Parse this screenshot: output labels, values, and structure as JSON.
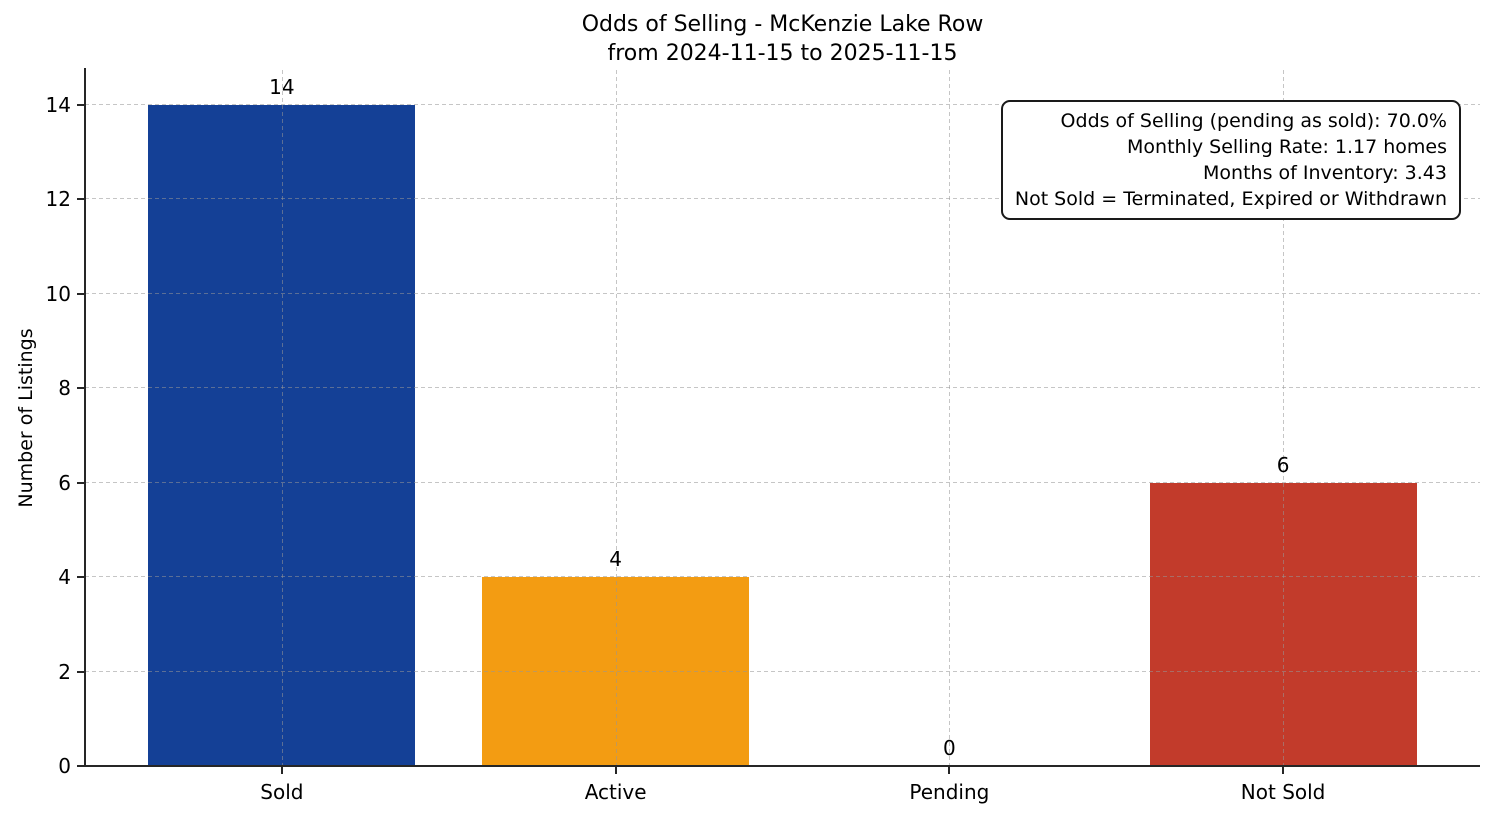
{
  "figure": {
    "background": "#ffffff"
  },
  "header": {
    "title_line1": "Odds of Selling - McKenzie Lake Row",
    "title_line2": "from 2024-11-15 to 2025-11-15"
  },
  "chart_data": {
    "type": "bar",
    "title": "Odds of Selling - McKenzie Lake Row\nfrom 2024-11-15 to 2025-11-15",
    "categories": [
      "Sold",
      "Active",
      "Pending",
      "Not Sold"
    ],
    "values": [
      14,
      4,
      0,
      6
    ],
    "value_labels": [
      "14",
      "4",
      "0",
      "6"
    ],
    "bar_colors": [
      "#144096",
      "#f39c12",
      "#808080",
      "#c23b2b"
    ],
    "ylabel": "Number of Listings",
    "xlabel": "",
    "yticks": [
      0,
      2,
      4,
      6,
      8,
      10,
      12,
      14
    ],
    "ylim": [
      0,
      14.74
    ],
    "xlim": [
      -0.59,
      3.59
    ],
    "bar_width": 0.8,
    "grid": {
      "axis": "both",
      "linestyle": "dashed",
      "color": "#c8c8c8",
      "drawn_above_bars": true
    },
    "legend": "none",
    "annotation": {
      "position": "top-right",
      "text_align": "right",
      "lines": [
        "Odds of Selling (pending as sold): 70.0%",
        "Monthly Selling Rate: 1.17 homes",
        "Months of Inventory: 3.43",
        "Not Sold = Terminated, Expired or Withdrawn"
      ]
    }
  },
  "colors": {
    "axis_spine": "#262626",
    "text": "#000000",
    "grid": "#c8c8c8",
    "annotation_border": "#1a1a1a",
    "background": "#ffffff",
    "bar_sold": "#144096",
    "bar_active": "#f39c12",
    "bar_not_sold": "#c23b2b"
  }
}
